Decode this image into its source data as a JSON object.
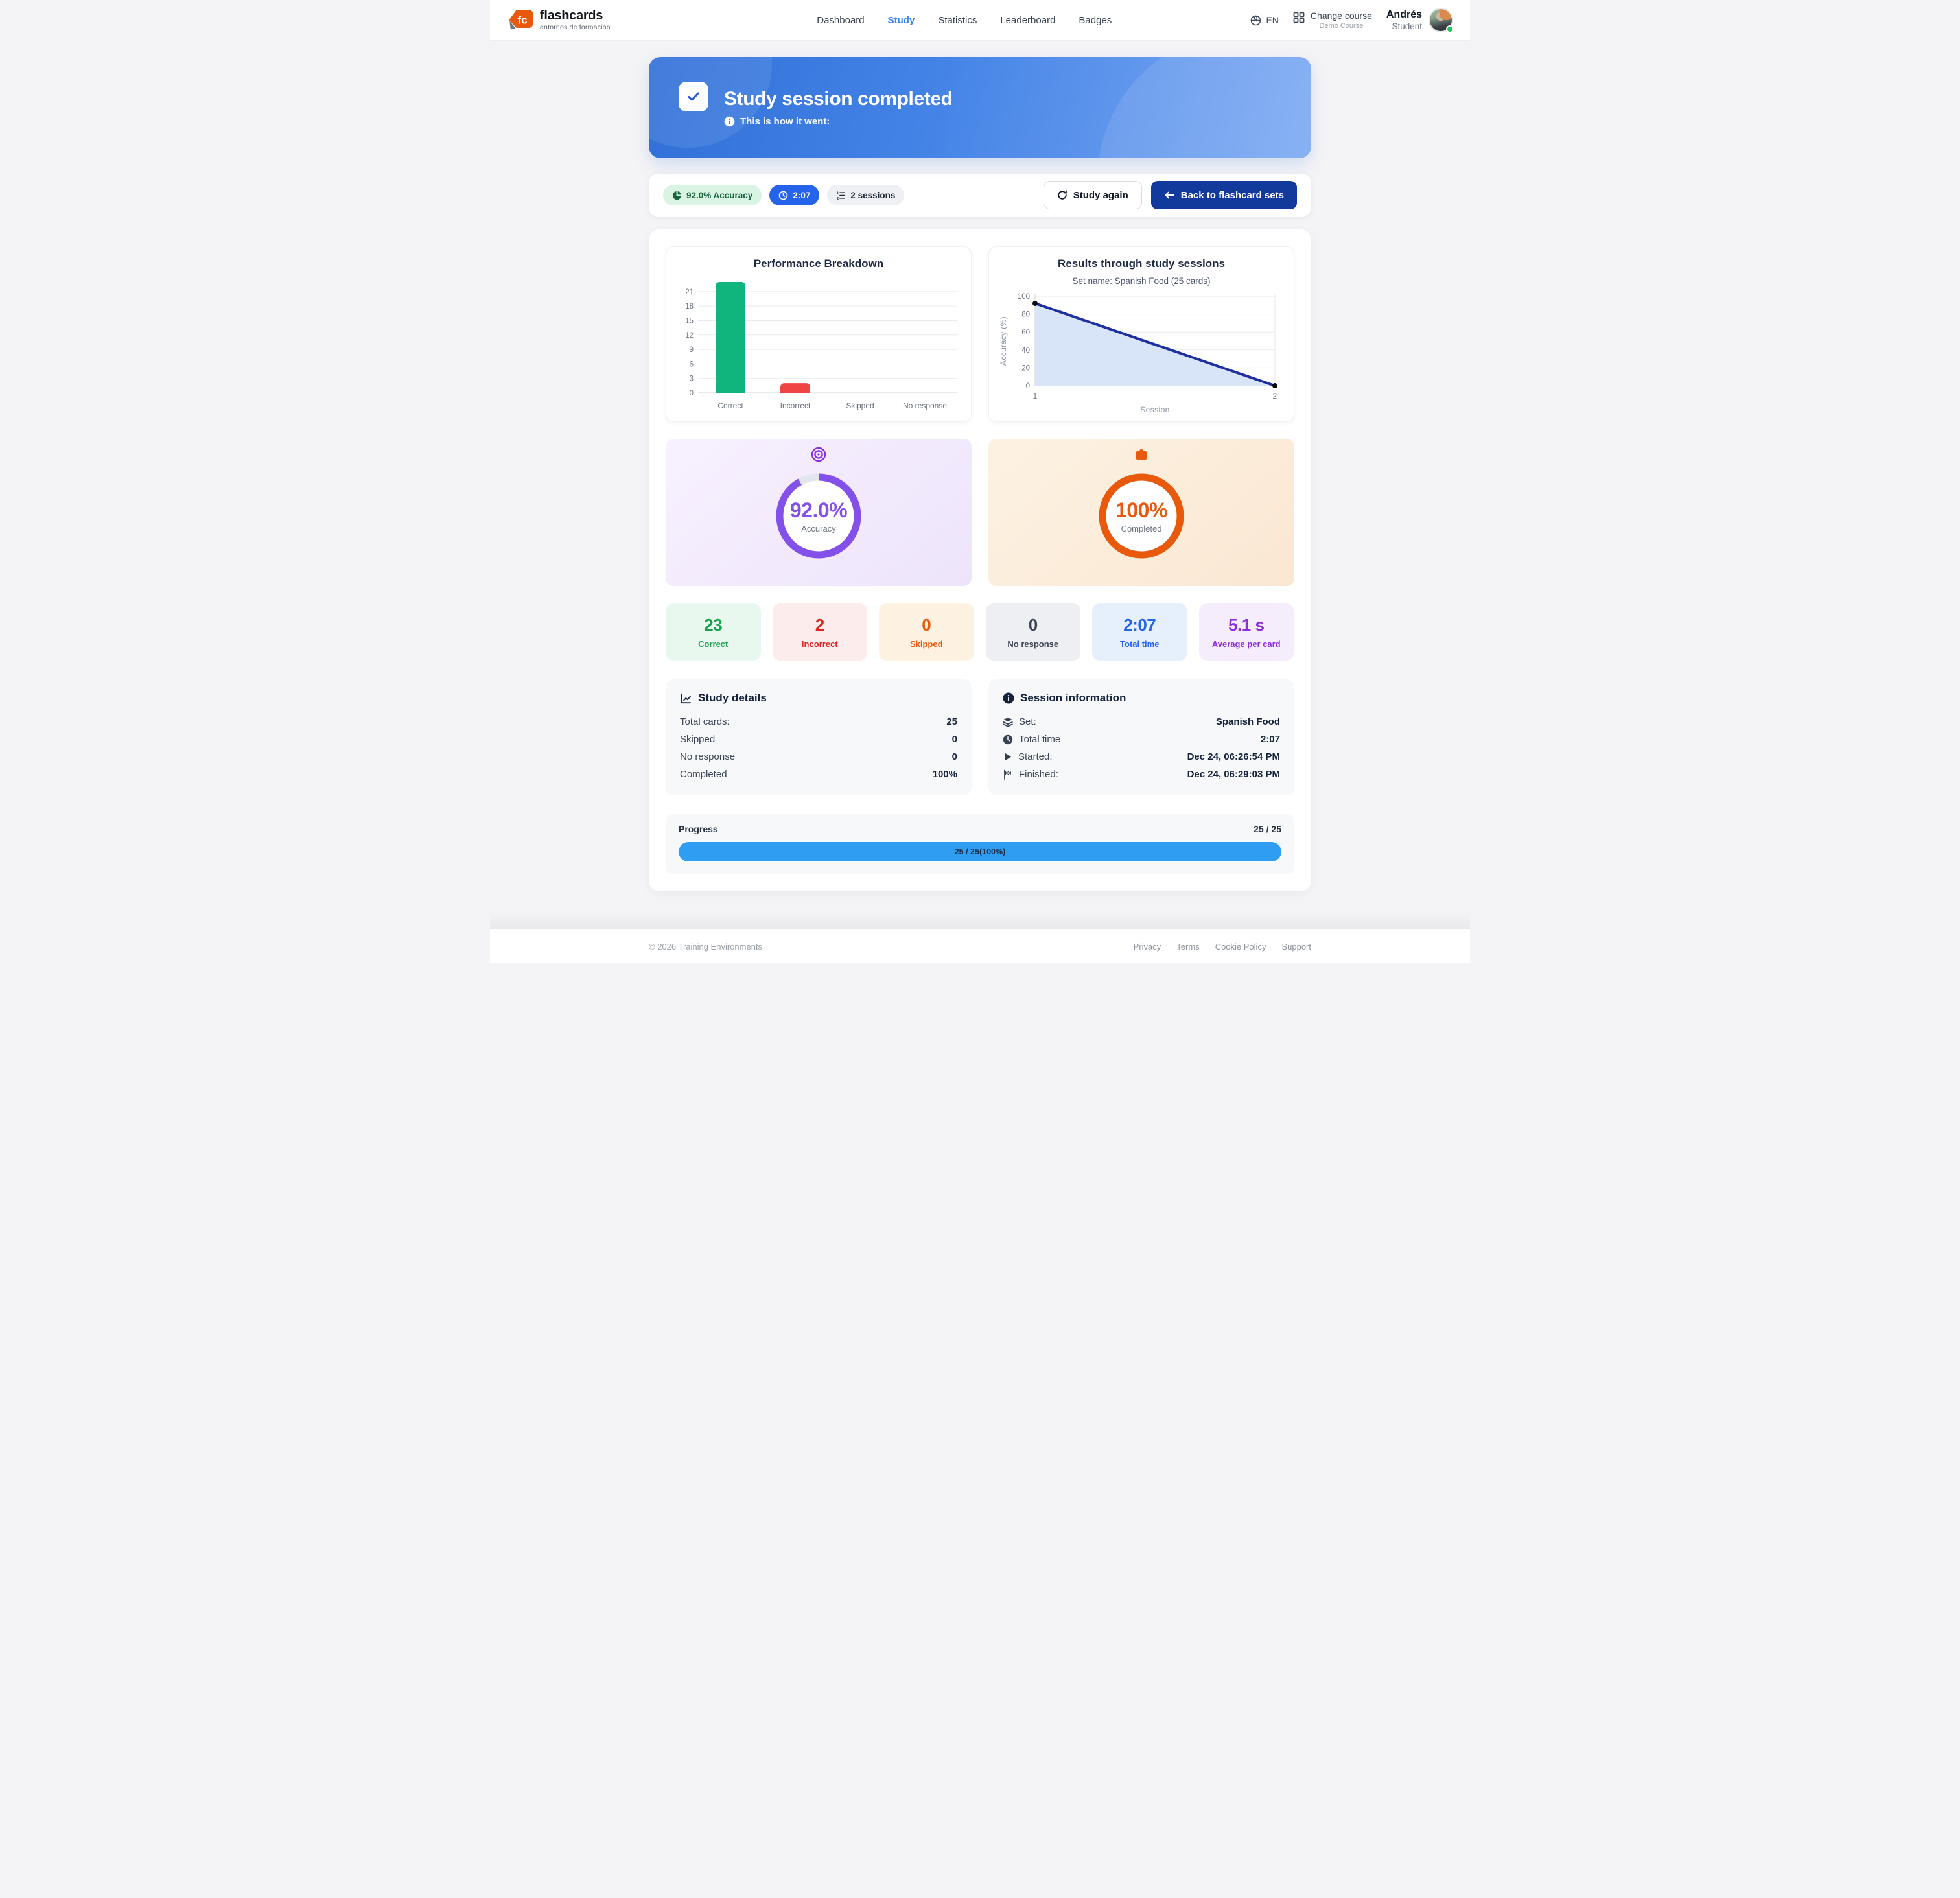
{
  "header": {
    "brand": {
      "initials": "fc",
      "name": "flashcards",
      "tagline": "entornos de formación"
    },
    "nav": {
      "items": [
        {
          "label": "Dashboard"
        },
        {
          "label": "Study",
          "active": true
        },
        {
          "label": "Statistics"
        },
        {
          "label": "Leaderboard"
        },
        {
          "label": "Badges"
        }
      ]
    },
    "language": "EN",
    "course_switcher": {
      "label": "Change course",
      "course": "Demo Course"
    },
    "user": {
      "name": "Andrés",
      "role": "Student",
      "status_color": "#22c55e"
    }
  },
  "banner": {
    "title": "Study session completed",
    "subtitle": "This is how it went:"
  },
  "summary_bar": {
    "pills": [
      {
        "icon": "pie-chart-icon",
        "label": "92.0% Accuracy"
      },
      {
        "icon": "clock-icon",
        "label": "2:07"
      },
      {
        "icon": "ordered-list-icon",
        "label": "2 sessions"
      }
    ],
    "buttons": [
      {
        "icon": "refresh-icon",
        "label": "Study again"
      },
      {
        "icon": "arrow-left-icon",
        "label": "Back to flashcard sets"
      }
    ]
  },
  "chart_data": [
    {
      "type": "bar",
      "title": "Performance Breakdown",
      "categories": [
        "Correct",
        "Incorrect",
        "Skipped",
        "No response"
      ],
      "values": [
        23,
        2,
        0,
        0
      ],
      "colors": [
        "#10b57e",
        "#ef4444",
        "#f59e0b",
        "#94a3b8"
      ],
      "yticks": [
        0,
        3,
        6,
        9,
        12,
        15,
        18,
        21
      ],
      "ymax": 23,
      "grid": true,
      "legend": "none"
    },
    {
      "type": "area",
      "title": "Results through study sessions",
      "subtitle": "Set name: Spanish Food (25 cards)",
      "x": [
        1,
        2
      ],
      "values": [
        92,
        0
      ],
      "xlabel": "Session",
      "ylabel": "Accuracy (%)",
      "yticks": [
        0,
        20,
        40,
        60,
        80,
        100
      ],
      "ylim": [
        0,
        100
      ],
      "line_color": "#1e2f9f",
      "fill_color": "#d8e5f8",
      "point_color": "#0b0b0c",
      "grid": true,
      "legend": "none"
    }
  ],
  "gauges": [
    {
      "icon": "target-icon",
      "percent": 92,
      "value_label": "92.0%",
      "caption": "Accuracy",
      "color": "#8450ea"
    },
    {
      "icon": "briefcase-icon",
      "percent": 100,
      "value_label": "100%",
      "caption": "Completed",
      "color": "#e8590c"
    }
  ],
  "stat_cards": [
    {
      "value": "23",
      "label": "Correct",
      "color": "#17a34a",
      "bg": "#e9f8ef"
    },
    {
      "value": "2",
      "label": "Incorrect",
      "color": "#dc2626",
      "bg": "#fdecec"
    },
    {
      "value": "0",
      "label": "Skipped",
      "color": "#e8590c",
      "bg": "#fdf2e2"
    },
    {
      "value": "0",
      "label": "No response",
      "color": "#3f4754",
      "bg": "#edeff2"
    },
    {
      "value": "2:07",
      "label": "Total time",
      "color": "#2563eb",
      "bg": "#e6f0fd"
    },
    {
      "value": "5.1 s",
      "label": "Average per card",
      "color": "#8b2fd6",
      "bg": "#f5edfc"
    }
  ],
  "study_details": {
    "title": "Study details",
    "rows": [
      {
        "label": "Total cards:",
        "value": "25"
      },
      {
        "label": "Skipped",
        "value": "0"
      },
      {
        "label": "No response",
        "value": "0"
      },
      {
        "label": "Completed",
        "value": "100%"
      }
    ]
  },
  "session_info": {
    "title": "Session information",
    "rows": [
      {
        "icon": "layers-icon",
        "label": "Set:",
        "value": "Spanish Food"
      },
      {
        "icon": "clock-icon",
        "label": "Total time",
        "value": "2:07"
      },
      {
        "icon": "play-icon",
        "label": "Started:",
        "value": "Dec 24, 06:26:54 PM"
      },
      {
        "icon": "flag-icon",
        "label": "Finished:",
        "value": "Dec 24, 06:29:03 PM"
      }
    ]
  },
  "progress": {
    "label": "Progress",
    "count": "25 / 25",
    "percent": 100,
    "bar_text": "25 / 25(100%)"
  },
  "footer": {
    "copyright": "© 2026 Training Environments",
    "links": [
      "Privacy",
      "Terms",
      "Cookie Policy",
      "Support"
    ]
  }
}
